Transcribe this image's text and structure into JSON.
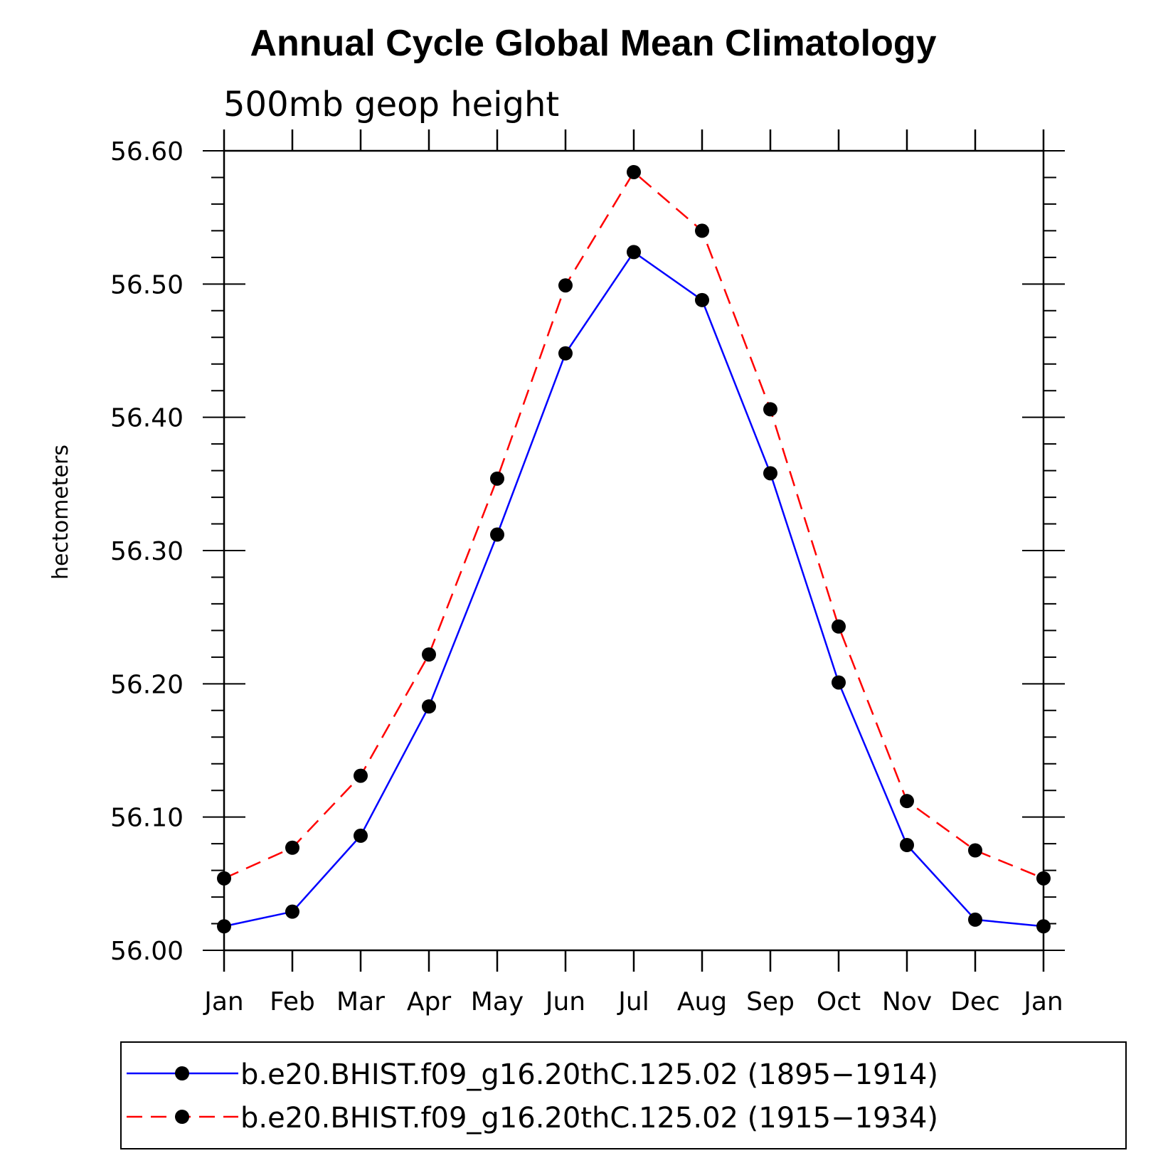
{
  "chart_data": {
    "type": "line",
    "title": "Annual Cycle Global Mean Climatology",
    "subtitle": "500mb geop height",
    "xlabel": "",
    "ylabel": "hectometers",
    "categories": [
      "Jan",
      "Feb",
      "Mar",
      "Apr",
      "May",
      "Jun",
      "Jul",
      "Aug",
      "Sep",
      "Oct",
      "Nov",
      "Dec",
      "Jan"
    ],
    "ylim": [
      56.0,
      56.6
    ],
    "yticks": [
      "56.00",
      "56.10",
      "56.20",
      "56.30",
      "56.40",
      "56.50",
      "56.60"
    ],
    "grid": false,
    "legend_position": "bottom",
    "series": [
      {
        "name": "b.e20.BHIST.f09_g16.20thC.125.02 (1895−1914)",
        "color": "#0000ff",
        "dash": "solid",
        "values": [
          56.018,
          56.029,
          56.086,
          56.183,
          56.312,
          56.448,
          56.524,
          56.488,
          56.358,
          56.201,
          56.079,
          56.023,
          56.018
        ]
      },
      {
        "name": "b.e20.BHIST.f09_g16.20thC.125.02 (1915−1934)",
        "color": "#ff0000",
        "dash": "dashed",
        "values": [
          56.054,
          56.077,
          56.131,
          56.222,
          56.354,
          56.499,
          56.584,
          56.54,
          56.406,
          56.243,
          56.112,
          56.075,
          56.054
        ]
      }
    ]
  }
}
